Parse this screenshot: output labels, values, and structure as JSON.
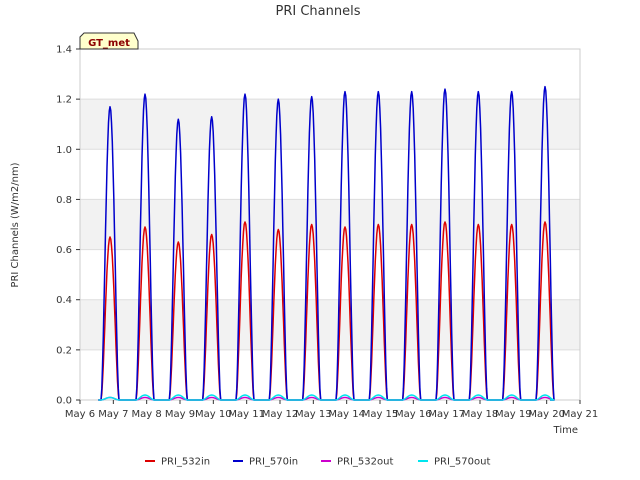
{
  "chart_data": {
    "type": "line",
    "title": "PRI Channels",
    "xlabel": "Time",
    "ylabel": "PRI Channels (W/m2/nm)",
    "xlim": [
      6,
      21
    ],
    "ylim": [
      0,
      1.4
    ],
    "xticks": [
      6,
      7,
      8,
      9,
      10,
      11,
      12,
      13,
      14,
      15,
      16,
      17,
      18,
      19,
      20,
      21
    ],
    "xtick_labels": [
      "May 6",
      "May 7",
      "May 8",
      "May 9",
      "May 10",
      "May 11",
      "May 12",
      "May 13",
      "May 14",
      "May 15",
      "May 16",
      "May 17",
      "May 18",
      "May 19",
      "May 20",
      "May 21"
    ],
    "yticks": [
      0.0,
      0.2,
      0.4,
      0.6,
      0.8,
      1.0,
      1.2,
      1.4
    ],
    "ytick_labels": [
      "0.0",
      "0.2",
      "0.4",
      "0.6",
      "0.8",
      "1.0",
      "1.2",
      "1.4"
    ],
    "badge": "GT_met",
    "legend_position": "bottom",
    "series": [
      {
        "name": "PRI_532in",
        "color": "#dd0000",
        "peak_days": [
          6.9,
          7.95,
          8.95,
          9.95,
          10.95,
          11.95,
          12.95,
          13.95,
          14.95,
          15.95,
          16.95,
          17.95,
          18.95,
          19.95
        ],
        "peaks": [
          0.65,
          0.69,
          0.63,
          0.66,
          0.71,
          0.68,
          0.7,
          0.69,
          0.7,
          0.7,
          0.71,
          0.7,
          0.7,
          0.71
        ]
      },
      {
        "name": "PRI_570in",
        "color": "#0000cc",
        "peak_days": [
          6.9,
          7.95,
          8.95,
          9.95,
          10.95,
          11.95,
          12.95,
          13.95,
          14.95,
          15.95,
          16.95,
          17.95,
          18.95,
          19.95
        ],
        "peaks": [
          1.17,
          1.22,
          1.12,
          1.13,
          1.22,
          1.2,
          1.21,
          1.23,
          1.23,
          1.23,
          1.24,
          1.23,
          1.23,
          1.25
        ]
      },
      {
        "name": "PRI_532out",
        "color": "#cc00cc",
        "peak_days": [
          6.9,
          7.95,
          8.95,
          9.95,
          10.95,
          11.95,
          12.95,
          13.95,
          14.95,
          15.95,
          16.95,
          17.95,
          18.95,
          19.95
        ],
        "peaks": [
          0.01,
          0.01,
          0.01,
          0.01,
          0.01,
          0.01,
          0.01,
          0.01,
          0.01,
          0.01,
          0.01,
          0.01,
          0.01,
          0.01
        ]
      },
      {
        "name": "PRI_570out",
        "color": "#00e5ee",
        "peak_days": [
          6.9,
          7.95,
          8.95,
          9.95,
          10.95,
          11.95,
          12.95,
          13.95,
          14.95,
          15.95,
          16.95,
          17.95,
          18.95,
          19.95
        ],
        "peaks": [
          0.01,
          0.02,
          0.02,
          0.02,
          0.02,
          0.02,
          0.02,
          0.02,
          0.02,
          0.02,
          0.02,
          0.02,
          0.02,
          0.02
        ]
      }
    ]
  }
}
